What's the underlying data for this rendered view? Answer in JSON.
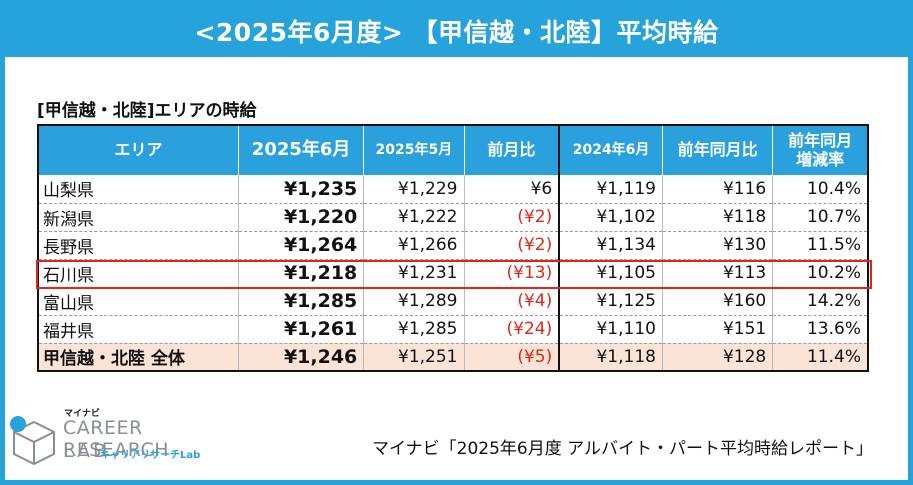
{
  "banner": {
    "title": "<2025年6月度> 【甲信越・北陸】平均時給"
  },
  "subtitle": "[甲信越・北陸]エリアの時給",
  "table": {
    "headers": [
      "エリア",
      "2025年6月",
      "2025年5月",
      "前月比",
      "2024年6月",
      "前年同月比",
      "前年同月\n増減率"
    ],
    "rows": [
      {
        "area": "山梨県",
        "jun2025": "¥1,235",
        "may2025": "¥1,229",
        "mom": "¥6",
        "mom_negative": false,
        "jun2024": "¥1,119",
        "yoy": "¥116",
        "yoy_rate": "10.4%"
      },
      {
        "area": "新潟県",
        "jun2025": "¥1,220",
        "may2025": "¥1,222",
        "mom": "(¥2)",
        "mom_negative": true,
        "jun2024": "¥1,102",
        "yoy": "¥118",
        "yoy_rate": "10.7%"
      },
      {
        "area": "長野県",
        "jun2025": "¥1,264",
        "may2025": "¥1,266",
        "mom": "(¥2)",
        "mom_negative": true,
        "jun2024": "¥1,134",
        "yoy": "¥130",
        "yoy_rate": "11.5%"
      },
      {
        "area": "石川県",
        "jun2025": "¥1,218",
        "may2025": "¥1,231",
        "mom": "(¥13)",
        "mom_negative": true,
        "jun2024": "¥1,105",
        "yoy": "¥113",
        "yoy_rate": "10.2%"
      },
      {
        "area": "富山県",
        "jun2025": "¥1,285",
        "may2025": "¥1,289",
        "mom": "(¥4)",
        "mom_negative": true,
        "jun2024": "¥1,125",
        "yoy": "¥160",
        "yoy_rate": "14.2%"
      },
      {
        "area": "福井県",
        "jun2025": "¥1,261",
        "may2025": "¥1,285",
        "mom": "(¥24)",
        "mom_negative": true,
        "jun2024": "¥1,110",
        "yoy": "¥151",
        "yoy_rate": "13.6%"
      }
    ],
    "total": {
      "area": "甲信越・北陸 全体",
      "jun2025": "¥1,246",
      "may2025": "¥1,251",
      "mom": "(¥5)",
      "mom_negative": true,
      "jun2024": "¥1,118",
      "yoy": "¥128",
      "yoy_rate": "11.4%"
    },
    "highlighted_row": "石川県"
  },
  "logo": {
    "brand_small": "マイナビ",
    "line1": "CAREER RESEARCH",
    "line2": "LAB",
    "sub": "キャリアリサーチLab"
  },
  "source": "マイナビ「2025年6月度 アルバイト・パート平均時給レポート」",
  "colors": {
    "accent": "#27a3dc",
    "header": "#2aa0dc",
    "negative": "#e0261b",
    "total_row": "#fbe4d5",
    "highlight_border": "#e0261b"
  }
}
